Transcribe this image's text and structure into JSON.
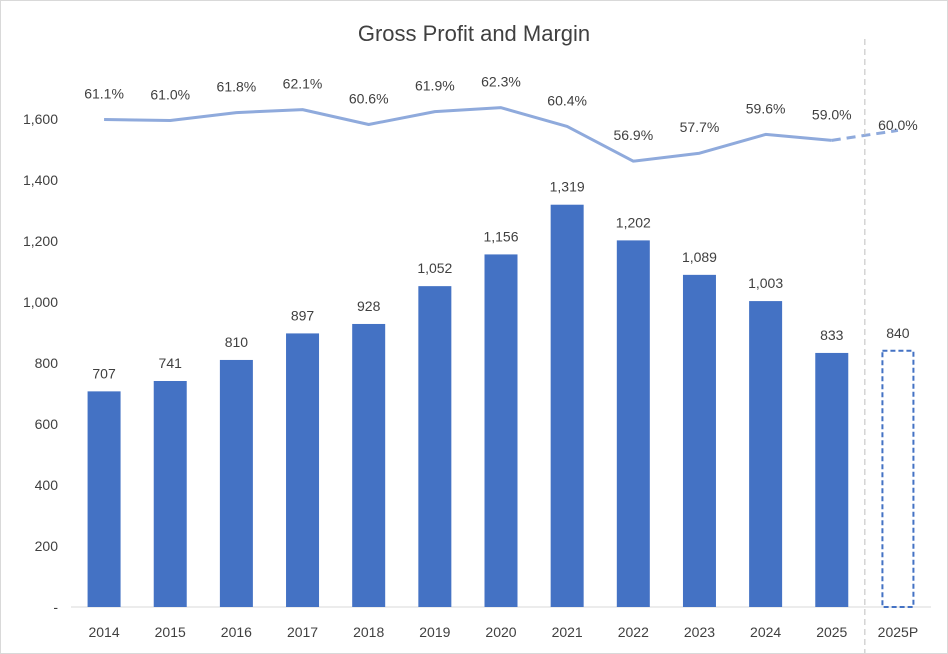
{
  "chart_data": {
    "type": "bar",
    "title": "Gross Profit and Margin",
    "xlabel": "",
    "ylabel": "",
    "ylim": [
      0,
      1600
    ],
    "y_ticks": [
      {
        "value": 0,
        "label": "-"
      },
      {
        "value": 200,
        "label": "200"
      },
      {
        "value": 400,
        "label": "400"
      },
      {
        "value": 600,
        "label": "600"
      },
      {
        "value": 800,
        "label": "800"
      },
      {
        "value": 1000,
        "label": "1,000"
      },
      {
        "value": 1200,
        "label": "1,200"
      },
      {
        "value": 1400,
        "label": "1,400"
      },
      {
        "value": 1600,
        "label": "1,600"
      }
    ],
    "categories": [
      "2014",
      "2015",
      "2016",
      "2017",
      "2018",
      "2019",
      "2020",
      "2021",
      "2022",
      "2023",
      "2024",
      "2025",
      "2025P"
    ],
    "series": [
      {
        "name": "Gross Profit",
        "kind": "bar",
        "color": "#4472c4",
        "values": [
          707,
          741,
          810,
          897,
          928,
          1052,
          1156,
          1319,
          1202,
          1089,
          1003,
          833,
          840
        ],
        "labels": [
          "707",
          "741",
          "810",
          "897",
          "928",
          "1,052",
          "1,156",
          "1,319",
          "1,202",
          "1,089",
          "1,003",
          "833",
          "840"
        ],
        "projected_from_index": 12
      },
      {
        "name": "Gross Margin",
        "kind": "line",
        "color": "#8faadc",
        "values": [
          61.1,
          61.0,
          61.8,
          62.1,
          60.6,
          61.9,
          62.3,
          60.4,
          56.9,
          57.7,
          59.6,
          59.0,
          60.0
        ],
        "labels": [
          "61.1%",
          "61.0%",
          "61.8%",
          "62.1%",
          "60.6%",
          "61.9%",
          "62.3%",
          "60.4%",
          "56.9%",
          "57.7%",
          "59.6%",
          "59.0%",
          "60.0%"
        ],
        "projected_from_index": 12
      }
    ],
    "separator_before_index": 12,
    "grid": false,
    "legend": "none"
  }
}
